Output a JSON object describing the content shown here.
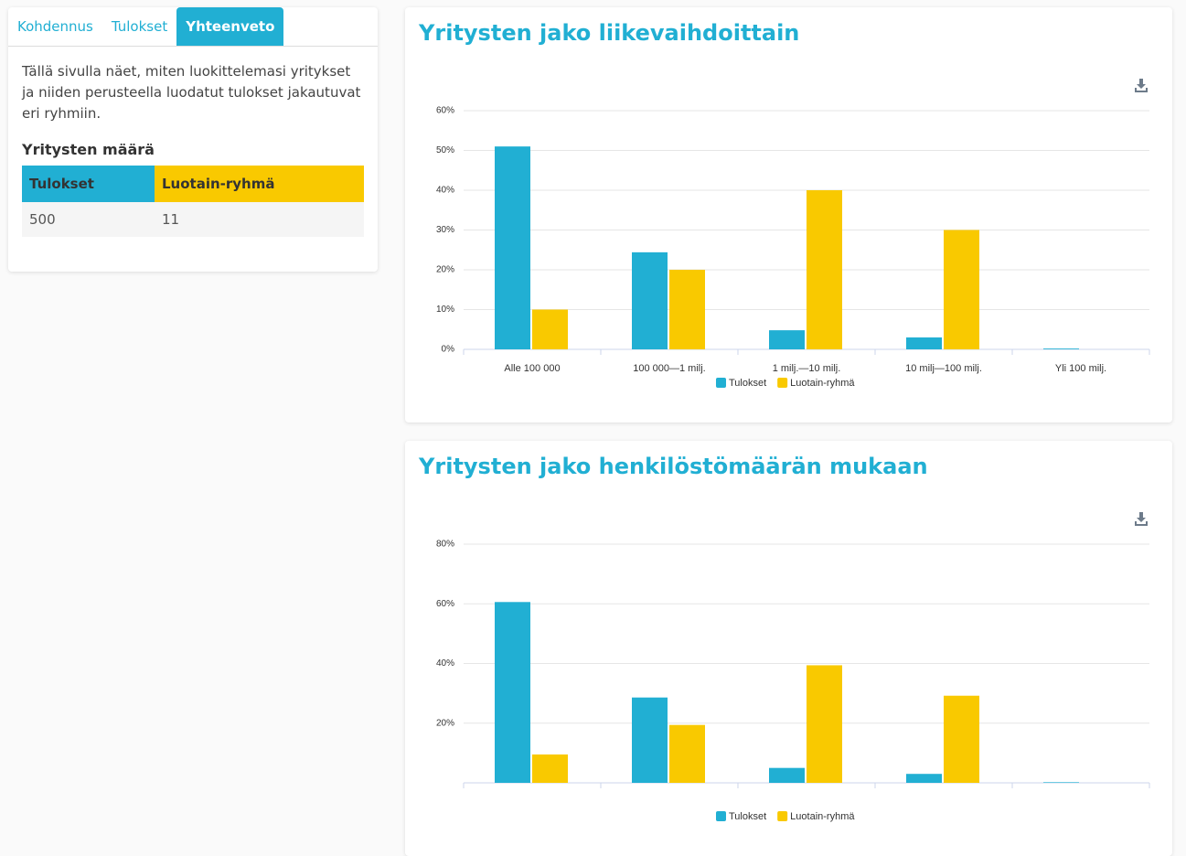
{
  "tabs": [
    "Kohdennus",
    "Tulokset",
    "Yhteenveto"
  ],
  "intro": "Tällä sivulla näet, miten luokittelemasi yritykset ja niiden perusteella luodatut tulokset jakautuvat eri ryhmiin.",
  "table_heading": "Yritysten määrä",
  "table": {
    "header": [
      "Tulokset",
      "Luotain-ryhmä"
    ],
    "rows": [
      [
        "500",
        "11"
      ]
    ]
  },
  "chart_data": [
    {
      "type": "bar",
      "title": "Yritysten jako liikevaihdoittain",
      "categories": [
        "Alle 100 000",
        "100 000—1 milj.",
        "1 milj.—10 milj.",
        "10 milj—100 milj.",
        "Yli 100 milj."
      ],
      "series": [
        {
          "name": "Tulokset",
          "color": "#21afd3",
          "values": [
            51,
            24.4,
            4.8,
            3,
            0.2
          ]
        },
        {
          "name": "Luotain-ryhmä",
          "color": "#f9c900",
          "values": [
            10,
            20,
            40,
            30,
            0
          ]
        }
      ],
      "ylim": [
        0,
        60
      ],
      "yticks": [
        {
          "value": 0,
          "label": "0%"
        },
        {
          "value": 10,
          "label": "10%"
        },
        {
          "value": 20,
          "label": "20%"
        },
        {
          "value": 30,
          "label": "30%"
        },
        {
          "value": 40,
          "label": "40%"
        },
        {
          "value": 50,
          "label": "50%"
        },
        {
          "value": 60,
          "label": "60%"
        }
      ],
      "grid": true,
      "legend": "bottom"
    },
    {
      "type": "bar",
      "title": "Yritysten jako henkilöstömäärän mukaan",
      "categories": [
        null,
        null,
        null,
        null,
        null
      ],
      "series": [
        {
          "name": "Tulokset",
          "color": "#21afd3",
          "values": [
            60.6,
            28.6,
            5,
            3,
            0.2
          ]
        },
        {
          "name": "Luotain-ryhmä",
          "color": "#f9c900",
          "values": [
            9.5,
            19.4,
            39.4,
            29.2,
            0
          ]
        }
      ],
      "ylim": [
        0,
        80
      ],
      "yticks": [
        {
          "value": 20,
          "label": "20%"
        },
        {
          "value": 40,
          "label": "40%"
        },
        {
          "value": 60,
          "label": "60%"
        },
        {
          "value": 80,
          "label": "80%"
        }
      ],
      "grid": true,
      "legend": "bottom"
    }
  ]
}
